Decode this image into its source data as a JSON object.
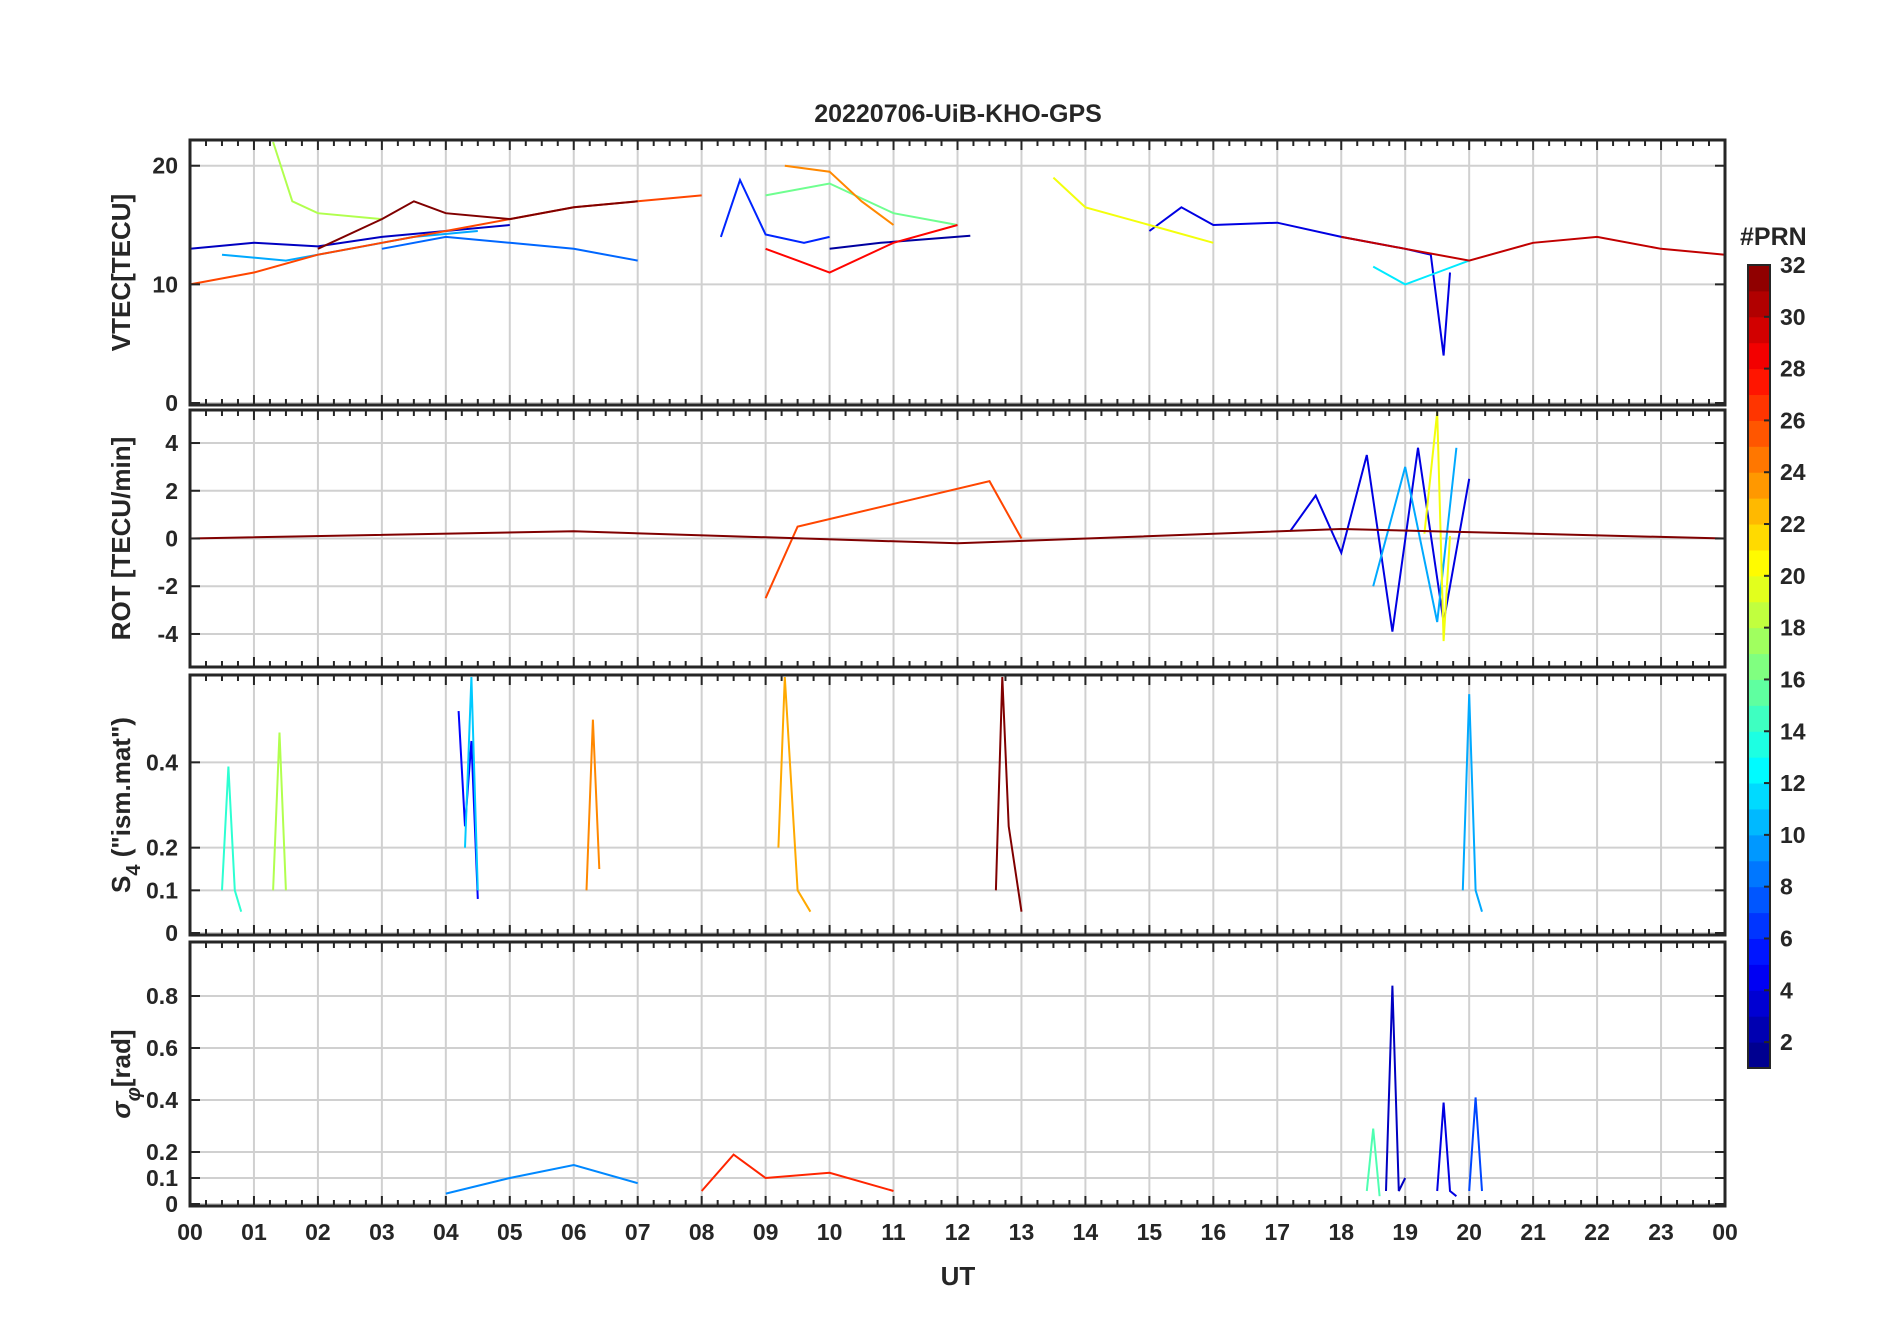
{
  "chart_data": {
    "type": "line",
    "title": "20220706-UiB-KHO-GPS",
    "xlabel": "UT",
    "xlim": [
      0,
      24
    ],
    "x_tick_labels": [
      "00",
      "01",
      "02",
      "03",
      "04",
      "05",
      "06",
      "07",
      "08",
      "09",
      "10",
      "11",
      "12",
      "13",
      "14",
      "15",
      "16",
      "17",
      "18",
      "19",
      "20",
      "21",
      "22",
      "23",
      "00"
    ],
    "colorbar": {
      "label": "#PRN",
      "range": [
        1,
        32
      ],
      "ticks": [
        2,
        4,
        6,
        8,
        10,
        12,
        14,
        16,
        18,
        20,
        22,
        24,
        26,
        28,
        30,
        32
      ]
    },
    "panels": [
      {
        "id": "vtec",
        "ylabel": "VTEC[TECU]",
        "ylim": [
          0,
          22
        ],
        "yticks": [
          0,
          10,
          20
        ],
        "series": [
          {
            "name": "PRN 2",
            "prn": 2,
            "x": [
              10.0,
              10.8,
              11.5,
              12.2
            ],
            "y": [
              13,
              13.5,
              13.8,
              14.1
            ]
          },
          {
            "name": "PRN 3",
            "prn": 3,
            "x": [
              0.0,
              1.0,
              2.0,
              3.0,
              4.0,
              5.0
            ],
            "y": [
              13.0,
              13.5,
              13.2,
              14.0,
              14.5,
              15.0
            ]
          },
          {
            "name": "PRN 4",
            "prn": 4,
            "x": [
              15.0,
              15.5,
              16.0,
              17.0,
              18.0,
              19.0,
              19.4,
              19.6,
              19.7
            ],
            "y": [
              14.5,
              16.5,
              15.0,
              15.2,
              14.0,
              13.0,
              12.5,
              4.0,
              11.0
            ]
          },
          {
            "name": "PRN 6",
            "prn": 6,
            "x": [
              8.3,
              8.6,
              9.0,
              9.6,
              10.0
            ],
            "y": [
              14.0,
              18.8,
              14.2,
              13.5,
              14.0
            ]
          },
          {
            "name": "PRN 8",
            "prn": 8,
            "x": [
              3.0,
              4.0,
              5.0,
              6.0,
              7.0
            ],
            "y": [
              13.0,
              14.0,
              13.5,
              13.0,
              12.0
            ]
          },
          {
            "name": "PRN 10",
            "prn": 10,
            "x": [
              0.5,
              1.5,
              2.5,
              3.5,
              4.5
            ],
            "y": [
              12.5,
              12.0,
              13.0,
              14.0,
              14.5
            ]
          },
          {
            "name": "PRN 12",
            "prn": 12,
            "x": [
              18.5,
              19.0,
              19.5,
              20.0
            ],
            "y": [
              11.5,
              10.0,
              11.0,
              12.0
            ]
          },
          {
            "name": "PRN 16",
            "prn": 16,
            "x": [
              9.0,
              10.0,
              11.0,
              12.0
            ],
            "y": [
              17.5,
              18.5,
              16.0,
              15.0
            ]
          },
          {
            "name": "PRN 18",
            "prn": 18,
            "x": [
              1.3,
              1.6,
              2.0,
              3.0
            ],
            "y": [
              22.0,
              17.0,
              16.0,
              15.5
            ]
          },
          {
            "name": "PRN 20",
            "prn": 20,
            "x": [
              13.5,
              14.0,
              15.0,
              16.0
            ],
            "y": [
              19.0,
              16.5,
              15.0,
              13.5
            ]
          },
          {
            "name": "PRN 24",
            "prn": 24,
            "x": [
              9.3,
              10.0,
              10.5,
              11.0
            ],
            "y": [
              20.0,
              19.5,
              17.0,
              15.0
            ]
          },
          {
            "name": "PRN 26",
            "prn": 26,
            "x": [
              0.0,
              1.0,
              2.0,
              3.0,
              4.0,
              5.0,
              6.0,
              7.0,
              8.0
            ],
            "y": [
              10.0,
              11.0,
              12.5,
              13.5,
              14.5,
              15.5,
              16.5,
              17.0,
              17.5
            ]
          },
          {
            "name": "PRN 28",
            "prn": 28,
            "x": [
              9.0,
              9.5,
              10.0,
              11.0,
              12.0
            ],
            "y": [
              13.0,
              12.0,
              11.0,
              13.5,
              15.0
            ]
          },
          {
            "name": "PRN 30",
            "prn": 30,
            "x": [
              18.0,
              19.0,
              20.0,
              21.0,
              22.0,
              23.0,
              24.0
            ],
            "y": [
              14.0,
              13.0,
              12.0,
              13.5,
              14.0,
              13.0,
              12.5
            ]
          },
          {
            "name": "PRN 32",
            "prn": 32,
            "x": [
              2.0,
              3.0,
              3.5,
              4.0,
              5.0,
              6.0,
              7.0
            ],
            "y": [
              13.0,
              15.5,
              17.0,
              16.0,
              15.5,
              16.5,
              17.0
            ]
          }
        ]
      },
      {
        "id": "rot",
        "ylabel": "ROT [TECU/min]",
        "ylim": [
          -5.3,
          5.3
        ],
        "yticks": [
          -4,
          -2,
          0,
          2,
          4
        ],
        "series": [
          {
            "name": "PRN 4",
            "prn": 4,
            "x": [
              17.2,
              17.6,
              18.0,
              18.4,
              18.8,
              19.2,
              19.6,
              20.0
            ],
            "y": [
              0.3,
              1.8,
              -0.6,
              3.5,
              -3.9,
              3.8,
              -3.5,
              2.5
            ]
          },
          {
            "name": "PRN 10",
            "prn": 10,
            "x": [
              18.5,
              19.0,
              19.5,
              19.8
            ],
            "y": [
              -2.0,
              3.0,
              -3.5,
              3.8
            ]
          },
          {
            "name": "PRN 20",
            "prn": 20,
            "x": [
              19.3,
              19.5,
              19.6,
              19.7
            ],
            "y": [
              0.2,
              5.3,
              -4.3,
              0.1
            ]
          },
          {
            "name": "PRN 26",
            "prn": 26,
            "x": [
              9.0,
              9.5,
              12.5,
              13.0
            ],
            "y": [
              -2.5,
              0.5,
              2.4,
              0.0
            ]
          },
          {
            "name": "PRN 32",
            "prn": 32,
            "x": [
              0.0,
              6.0,
              12.0,
              18.0,
              24.0
            ],
            "y": [
              0.0,
              0.3,
              -0.2,
              0.4,
              0.0
            ]
          }
        ]
      },
      {
        "id": "s4",
        "ylabel": "S4 (\"ism.mat\")",
        "ylabel_main": "S",
        "ylabel_sub": "4",
        "ylabel_rest": " (\"ism.mat\")",
        "ylim": [
          0,
          0.6
        ],
        "yticks": [
          0,
          0.1,
          0.2,
          0.4
        ],
        "series": [
          {
            "name": "PRN 5",
            "prn": 5,
            "x": [
              4.2,
              4.3,
              4.4,
              4.5
            ],
            "y": [
              0.52,
              0.25,
              0.45,
              0.08
            ]
          },
          {
            "name": "PRN 11",
            "prn": 11,
            "x": [
              4.3,
              4.4,
              4.5
            ],
            "y": [
              0.2,
              0.6,
              0.1
            ]
          },
          {
            "name": "PRN 14",
            "prn": 14,
            "x": [
              0.5,
              0.6,
              0.7,
              0.8
            ],
            "y": [
              0.1,
              0.39,
              0.1,
              0.05
            ]
          },
          {
            "name": "PRN 18",
            "prn": 18,
            "x": [
              1.3,
              1.4,
              1.5
            ],
            "y": [
              0.1,
              0.47,
              0.1
            ]
          },
          {
            "name": "PRN 24",
            "prn": 24,
            "x": [
              6.2,
              6.3,
              6.4
            ],
            "y": [
              0.1,
              0.5,
              0.15
            ]
          },
          {
            "name": "PRN 23",
            "prn": 23,
            "x": [
              9.2,
              9.3,
              9.5,
              9.7
            ],
            "y": [
              0.2,
              0.6,
              0.1,
              0.05
            ]
          },
          {
            "name": "PRN 32",
            "prn": 32,
            "x": [
              12.6,
              12.7,
              12.8,
              13.0
            ],
            "y": [
              0.1,
              0.6,
              0.25,
              0.05
            ]
          },
          {
            "name": "PRN 10",
            "prn": 10,
            "x": [
              19.9,
              20.0,
              20.1,
              20.2
            ],
            "y": [
              0.1,
              0.56,
              0.1,
              0.05
            ]
          }
        ]
      },
      {
        "id": "sigma",
        "ylabel": "σφ[rad]",
        "ylabel_main": "σ",
        "ylabel_sub": "φ",
        "ylabel_rest": "[rad]",
        "ylim": [
          0,
          1.0
        ],
        "yticks": [
          0,
          0.1,
          0.2,
          0.4,
          0.6,
          0.8
        ],
        "series": [
          {
            "name": "PRN 3",
            "prn": 3,
            "x": [
              18.7,
              18.8,
              18.9,
              19.0
            ],
            "y": [
              0.05,
              0.84,
              0.05,
              0.1
            ]
          },
          {
            "name": "PRN 4",
            "prn": 4,
            "x": [
              19.5,
              19.6,
              19.7,
              19.8
            ],
            "y": [
              0.05,
              0.39,
              0.05,
              0.03
            ]
          },
          {
            "name": "PRN 7",
            "prn": 7,
            "x": [
              20.0,
              20.1,
              20.2
            ],
            "y": [
              0.05,
              0.41,
              0.05
            ]
          },
          {
            "name": "PRN 15",
            "prn": 15,
            "x": [
              18.4,
              18.5,
              18.6
            ],
            "y": [
              0.05,
              0.29,
              0.03
            ]
          },
          {
            "name": "PRN 9",
            "prn": 9,
            "x": [
              4.0,
              5.0,
              6.0,
              7.0
            ],
            "y": [
              0.04,
              0.1,
              0.15,
              0.08
            ]
          },
          {
            "name": "PRN 27",
            "prn": 27,
            "x": [
              8.0,
              8.5,
              9.0,
              10.0,
              11.0
            ],
            "y": [
              0.05,
              0.19,
              0.1,
              0.12,
              0.05
            ]
          }
        ]
      }
    ]
  }
}
